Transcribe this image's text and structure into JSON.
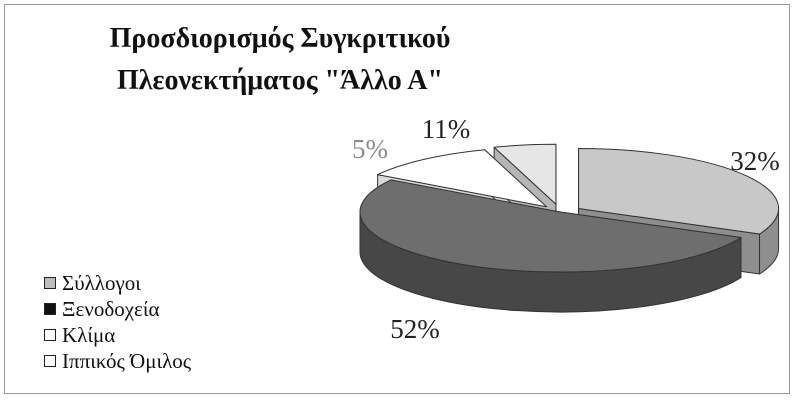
{
  "chart_data": {
    "type": "pie",
    "title_lines": [
      "Προσδιορισμός Συγκριτικού",
      "Πλεονεκτήματος \"Άλλο Α\""
    ],
    "slices": [
      {
        "name": "Σύλλογοι",
        "value": 32,
        "label": "32%",
        "color": "#c8c8c8",
        "side": "#8e8e8e",
        "label_color": "#222222"
      },
      {
        "name": "Ξενοδοχεία",
        "value": 52,
        "label": "52%",
        "color": "#6e6e6e",
        "side": "#474747",
        "label_color": "#222222"
      },
      {
        "name": "Κλίμα",
        "value": 11,
        "label": "11%",
        "color": "#ffffff",
        "side": "#d9d9d9",
        "label_color": "#222222"
      },
      {
        "name": "Ιππικός Όμιλος",
        "value": 5,
        "label": "5%",
        "color": "#e6e6e6",
        "side": "#b5b5b5",
        "label_color": "#8a8a8a"
      }
    ],
    "legend": [
      "Σύλλογοι",
      "Ξενοδοχεία",
      "Κλίμα",
      "Ιππικός Όμιλος"
    ],
    "legend_colors": [
      "#bdbdbd",
      "#111111",
      "#ffffff",
      "#ffffff"
    ],
    "legend_placement": "bottom-left",
    "three_d": true,
    "exploded": true
  }
}
